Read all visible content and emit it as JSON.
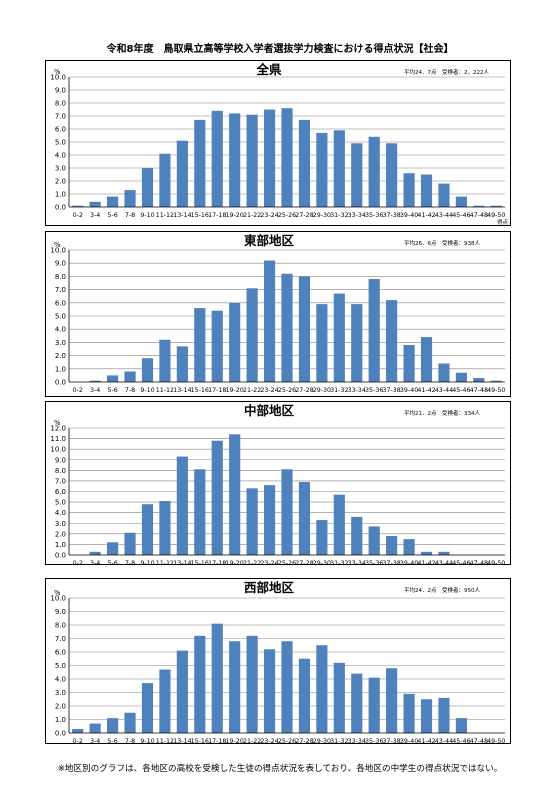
{
  "page": {
    "title": "令和8年度　鳥取県立高等学校入学者選抜学力検査における得点状況【社会】",
    "footnote": "※地区別のグラフは、各地区の高校を受検した生徒の得点状況を表しており、各地区の中学生の得点状況ではない。"
  },
  "colors": {
    "bar": "#4f81bd",
    "grid": "#868686",
    "axis": "#000000"
  },
  "chart_data": [
    {
      "type": "bar",
      "title": "全県",
      "stats": "平均24．7点　受検者：2，222人",
      "ylabel": "%",
      "xlabel": "得点",
      "ylim": [
        0,
        10
      ],
      "yticks": [
        "0.0",
        "1.0",
        "2.0",
        "3.0",
        "4.0",
        "5.0",
        "6.0",
        "7.0",
        "8.0",
        "9.0",
        "10.0"
      ],
      "categories": [
        "0-2",
        "3-4",
        "5-6",
        "7-8",
        "9-10",
        "11-12",
        "13-14",
        "15-16",
        "17-18",
        "19-20",
        "21-22",
        "23-24",
        "25-26",
        "27-28",
        "29-30",
        "31-32",
        "33-34",
        "35-36",
        "37-38",
        "39-40",
        "41-42",
        "43-44",
        "45-46",
        "47-48",
        "49-50"
      ],
      "values": [
        0.1,
        0.4,
        0.8,
        1.3,
        3.0,
        4.1,
        5.1,
        6.7,
        7.4,
        7.2,
        7.1,
        7.5,
        7.6,
        6.7,
        5.7,
        5.9,
        4.9,
        5.4,
        4.9,
        2.6,
        2.5,
        1.8,
        0.8,
        0.1,
        0.1
      ]
    },
    {
      "type": "bar",
      "title": "東部地区",
      "stats": "平均26．6点　受検者：938人",
      "ylabel": "%",
      "xlabel": "",
      "ylim": [
        0,
        10
      ],
      "yticks": [
        "0.0",
        "1.0",
        "2.0",
        "3.0",
        "4.0",
        "5.0",
        "6.0",
        "7.0",
        "8.0",
        "9.0",
        "10.0"
      ],
      "categories": [
        "0-2",
        "3-4",
        "5-6",
        "7-8",
        "9-10",
        "11-12",
        "13-14",
        "15-16",
        "17-18",
        "19-20",
        "21-22",
        "23-24",
        "25-26",
        "27-28",
        "29-30",
        "31-32",
        "33-34",
        "35-36",
        "37-38",
        "39-40",
        "41-42",
        "43-44",
        "45-46",
        "47-48",
        "49-50"
      ],
      "values": [
        0.0,
        0.1,
        0.5,
        0.8,
        1.8,
        3.2,
        2.7,
        5.6,
        5.4,
        6.0,
        7.1,
        9.2,
        8.2,
        8.0,
        5.9,
        6.7,
        5.9,
        7.8,
        6.2,
        2.8,
        3.4,
        1.4,
        0.7,
        0.3,
        0.1
      ]
    },
    {
      "type": "bar",
      "title": "中部地区",
      "stats": "平均21．2点　受検者：334人",
      "ylabel": "%",
      "xlabel": "",
      "ylim": [
        0,
        12
      ],
      "yticks": [
        "0.0",
        "1.0",
        "2.0",
        "3.0",
        "4.0",
        "5.0",
        "6.0",
        "7.0",
        "8.0",
        "9.0",
        "10.0",
        "11.0",
        "12.0"
      ],
      "categories": [
        "0-2",
        "3-4",
        "5-6",
        "7-8",
        "9-10",
        "11-12",
        "13-14",
        "15-16",
        "17-18",
        "19-20",
        "21-22",
        "23-24",
        "25-26",
        "27-28",
        "29-30",
        "31-32",
        "33-34",
        "35-36",
        "37-38",
        "39-40",
        "41-42",
        "43-44",
        "45-46",
        "47-48",
        "49-50"
      ],
      "values": [
        0.0,
        0.3,
        1.2,
        2.1,
        4.8,
        5.1,
        9.3,
        8.1,
        10.8,
        11.4,
        6.3,
        6.6,
        8.1,
        6.9,
        3.3,
        5.7,
        3.6,
        2.7,
        1.8,
        1.5,
        0.3,
        0.3,
        0.0,
        0.0,
        0.0
      ]
    },
    {
      "type": "bar",
      "title": "西部地区",
      "stats": "平均24．2点　受検者：950人",
      "ylabel": "%",
      "xlabel": "得点",
      "ylim": [
        0,
        10
      ],
      "yticks": [
        "0.0",
        "1.0",
        "2.0",
        "3.0",
        "4.0",
        "5.0",
        "6.0",
        "7.0",
        "8.0",
        "9.0",
        "10.0"
      ],
      "categories": [
        "0-2",
        "3-4",
        "5-6",
        "7-8",
        "9-10",
        "11-12",
        "13-14",
        "15-16",
        "17-18",
        "19-20",
        "21-22",
        "23-24",
        "25-26",
        "27-28",
        "29-30",
        "31-32",
        "33-34",
        "35-36",
        "37-38",
        "39-40",
        "41-42",
        "43-44",
        "45-46",
        "47-48",
        "49-50"
      ],
      "values": [
        0.3,
        0.7,
        1.1,
        1.5,
        3.7,
        4.7,
        6.1,
        7.2,
        8.1,
        6.8,
        7.2,
        6.2,
        6.8,
        5.5,
        6.5,
        5.2,
        4.4,
        4.1,
        4.8,
        2.9,
        2.5,
        2.6,
        1.1,
        0.0,
        0.0
      ]
    }
  ]
}
